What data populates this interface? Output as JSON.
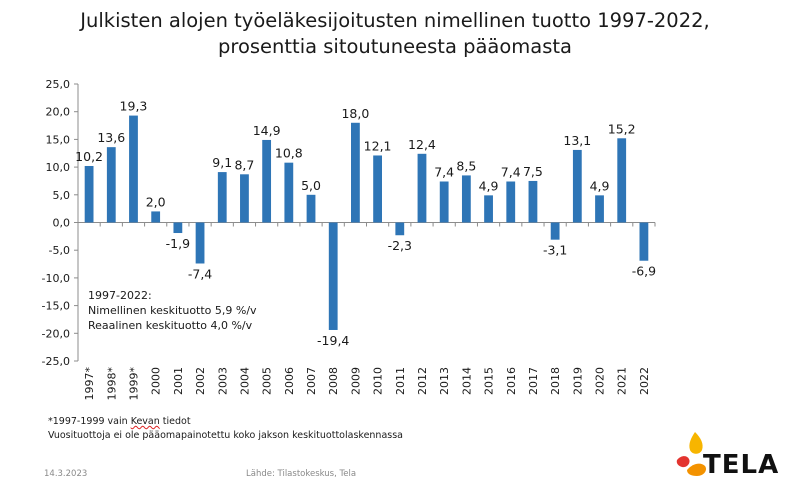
{
  "title_line1": "Julkisten alojen työeläkesijoitusten nimellinen tuotto 1997-2022,",
  "title_line2": "prosenttia sitoutuneesta pääomasta",
  "note": {
    "line1": "1997-2022:",
    "line2": "Nimellinen keskituotto 5,9 %/v",
    "line3": "Reaalinen keskituotto 4,0 %/v"
  },
  "footnote": {
    "line1_pre": "*1997-1999 vain ",
    "line1_word": "Kevan",
    "line1_post": " tiedot",
    "line2": "Vuosituottoja ei ole pääomapainotettu koko jakson keskituottolaskennassa"
  },
  "date": "14.3.2023",
  "source": "Lähde: Tilastokeskus, Tela",
  "logo_text": "TELA",
  "colors": {
    "bar": "#2e75b6",
    "logo_orange": "#f39200",
    "logo_yellow": "#f7b500",
    "logo_red": "#e3342f"
  },
  "chart_data": {
    "type": "bar",
    "categories": [
      "1997*",
      "1998*",
      "1999*",
      "2000",
      "2001",
      "2002",
      "2003",
      "2004",
      "2005",
      "2006",
      "2007",
      "2008",
      "2009",
      "2010",
      "2011",
      "2012",
      "2013",
      "2014",
      "2015",
      "2016",
      "2017",
      "2018",
      "2019",
      "2020",
      "2021",
      "2022"
    ],
    "values": [
      10.2,
      13.6,
      19.3,
      2.0,
      -1.9,
      -7.4,
      9.1,
      8.7,
      14.9,
      10.8,
      5.0,
      -19.4,
      18.0,
      12.1,
      -2.3,
      12.4,
      7.4,
      8.5,
      4.9,
      7.4,
      7.5,
      -3.1,
      13.1,
      4.9,
      15.2,
      -6.9
    ],
    "labels": [
      "10,2",
      "13,6",
      "19,3",
      "2,0",
      "-1,9",
      "-7,4",
      "9,1",
      "8,7",
      "14,9",
      "10,8",
      "5,0",
      "-19,4",
      "18,0",
      "12,1",
      "-2,3",
      "12,4",
      "7,4",
      "8,5",
      "4,9",
      "7,4",
      "7,5",
      "-3,1",
      "13,1",
      "4,9",
      "15,2",
      "-6,9"
    ],
    "yticks": [
      "-25,0",
      "-20,0",
      "-15,0",
      "-10,0",
      "-5,0",
      "0,0",
      "5,0",
      "10,0",
      "15,0",
      "20,0",
      "25,0"
    ],
    "ylim": [
      -25,
      25
    ],
    "grid": false,
    "legend": false
  }
}
